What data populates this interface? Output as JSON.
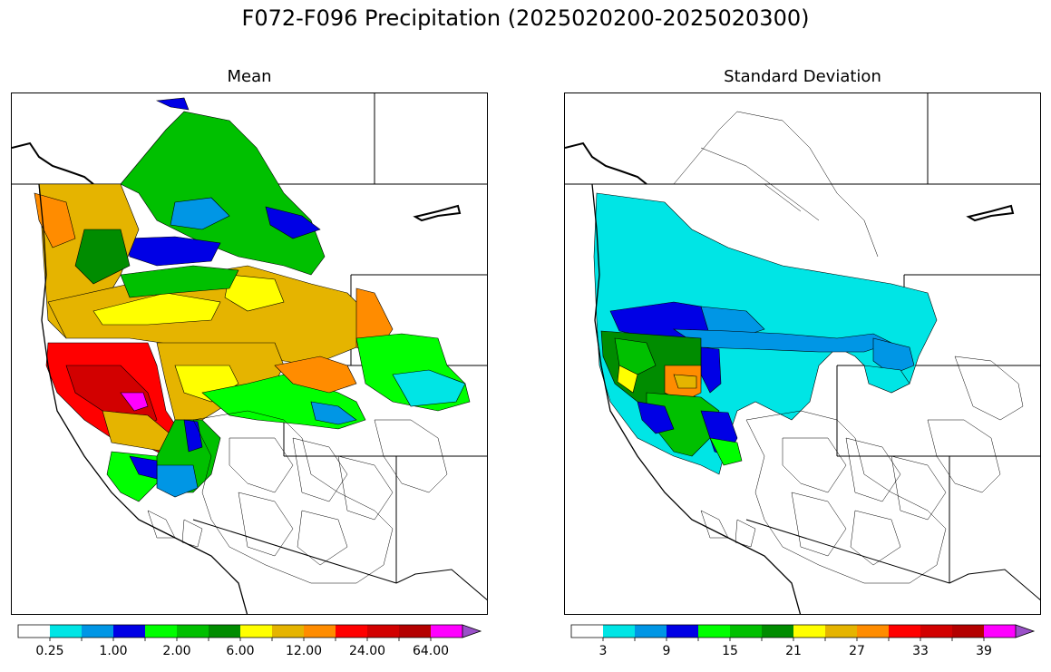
{
  "title": "F072-F096 Precipitation (2025020200-2025020300)",
  "panels": [
    {
      "title": "Mean",
      "colorbar": {
        "colors": [
          "#ffffff",
          "#00e5e5",
          "#0096e5",
          "#0000e5",
          "#00ff00",
          "#00c000",
          "#008c00",
          "#ffff00",
          "#e5b400",
          "#ff8c00",
          "#ff0000",
          "#d20000",
          "#b40000",
          "#ff00ff",
          "#9a50c8"
        ],
        "labels": [
          "0.25",
          "1.00",
          "2.00",
          "6.00",
          "12.00",
          "24.00",
          "64.00"
        ],
        "extend": "max"
      }
    },
    {
      "title": "Standard Deviation",
      "colorbar": {
        "colors": [
          "#ffffff",
          "#00e5e5",
          "#0096e5",
          "#0000e5",
          "#00ff00",
          "#00c000",
          "#008c00",
          "#ffff00",
          "#e5b400",
          "#ff8c00",
          "#ff0000",
          "#d20000",
          "#b40000",
          "#ff00ff",
          "#9a50c8"
        ],
        "labels": [
          "3",
          "9",
          "15",
          "21",
          "27",
          "33",
          "39"
        ],
        "extend": "max"
      }
    }
  ]
}
